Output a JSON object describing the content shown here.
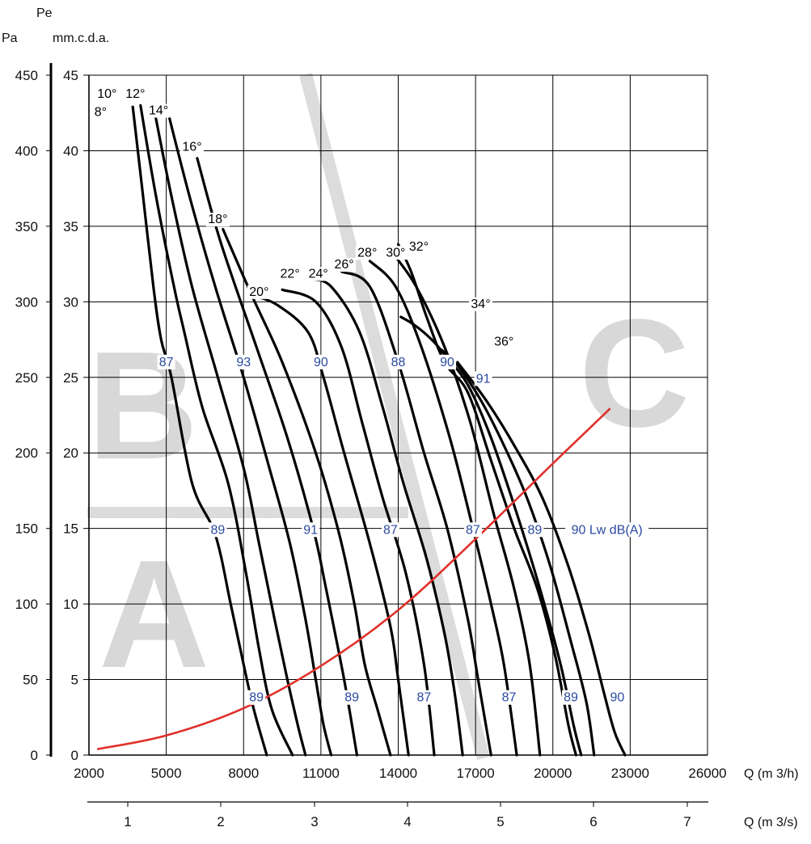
{
  "chart_data": {
    "type": "line",
    "left_axis": {
      "unit_top": "Pe",
      "unit_pa": "Pa",
      "unit_mm": "mm.c.d.a.",
      "pa_ticks": [
        "450",
        "400",
        "350",
        "300",
        "250",
        "200",
        "150",
        "100",
        "50",
        "0"
      ],
      "mm_ticks": [
        "45",
        "40",
        "35",
        "30",
        "25",
        "20",
        "15",
        "10",
        "5",
        "0"
      ],
      "ylim_mm": [
        0,
        45
      ]
    },
    "bottom_axis_h": {
      "label": "Q (m 3/h)",
      "ticks": [
        "2000",
        "5000",
        "8000",
        "11000",
        "14000",
        "17000",
        "20000",
        "23000",
        "26000"
      ],
      "xlim": [
        2000,
        26000
      ]
    },
    "bottom_axis_s": {
      "label": "Q (m 3/s)",
      "ticks": [
        "1",
        "2",
        "3",
        "4",
        "5",
        "6",
        "7"
      ]
    },
    "watermark_letters": [
      "B",
      "A",
      "C"
    ],
    "series": [
      {
        "name": "8°",
        "points": [
          [
            3700,
            42.9
          ],
          [
            4100,
            37
          ],
          [
            4500,
            31
          ],
          [
            4800,
            27.5
          ],
          [
            5200,
            25
          ],
          [
            6000,
            18
          ],
          [
            6900,
            14.6
          ],
          [
            7500,
            10
          ],
          [
            8000,
            6
          ],
          [
            8400,
            3
          ],
          [
            8900,
            0
          ]
        ]
      },
      {
        "name": "10°",
        "points": [
          [
            4000,
            43
          ],
          [
            4600,
            37
          ],
          [
            5300,
            31
          ],
          [
            5700,
            28
          ],
          [
            6400,
            23
          ],
          [
            7400,
            18
          ],
          [
            8100,
            12
          ],
          [
            8600,
            7
          ],
          [
            9100,
            3
          ],
          [
            9900,
            0
          ]
        ]
      },
      {
        "name": "12°",
        "points": [
          [
            4500,
            43
          ],
          [
            5200,
            37
          ],
          [
            6000,
            31
          ],
          [
            7000,
            25
          ],
          [
            8000,
            19
          ],
          [
            8600,
            14
          ],
          [
            9200,
            9
          ],
          [
            9700,
            5
          ],
          [
            10100,
            2
          ],
          [
            10400,
            0
          ]
        ]
      },
      {
        "name": "14°",
        "points": [
          [
            5000,
            43
          ],
          [
            5900,
            37
          ],
          [
            6900,
            31
          ],
          [
            8000,
            25
          ],
          [
            9000,
            19
          ],
          [
            9800,
            14
          ],
          [
            10400,
            9
          ],
          [
            10800,
            5
          ],
          [
            11100,
            2
          ],
          [
            11400,
            0
          ]
        ]
      },
      {
        "name": "16°",
        "points": [
          [
            6200,
            39.5
          ],
          [
            7100,
            34
          ],
          [
            8500,
            27
          ],
          [
            9700,
            21
          ],
          [
            10700,
            15
          ],
          [
            11200,
            11
          ],
          [
            11900,
            5
          ],
          [
            12400,
            0
          ]
        ]
      },
      {
        "name": "18°",
        "points": [
          [
            7200,
            34.8
          ],
          [
            8300,
            30.5
          ],
          [
            9500,
            26
          ],
          [
            10800,
            20
          ],
          [
            11700,
            14.7
          ],
          [
            12300,
            10
          ],
          [
            12700,
            6
          ],
          [
            13200,
            3
          ],
          [
            13700,
            0
          ]
        ]
      },
      {
        "name": "20°",
        "points": [
          [
            8400,
            30.4
          ],
          [
            9300,
            29.8
          ],
          [
            10500,
            28
          ],
          [
            11100,
            25
          ],
          [
            11900,
            20
          ],
          [
            12900,
            14
          ],
          [
            13700,
            8.5
          ],
          [
            14000,
            5
          ],
          [
            14400,
            0
          ]
        ]
      },
      {
        "name": "22°",
        "points": [
          [
            9500,
            30.8
          ],
          [
            10800,
            30
          ],
          [
            11800,
            27
          ],
          [
            12600,
            22
          ],
          [
            13400,
            17
          ],
          [
            14300,
            12
          ],
          [
            15000,
            6
          ],
          [
            15400,
            0
          ]
        ]
      },
      {
        "name": "24°",
        "points": [
          [
            10600,
            31.5
          ],
          [
            11400,
            31
          ],
          [
            12500,
            28
          ],
          [
            13400,
            23
          ],
          [
            14200,
            18
          ],
          [
            15100,
            13
          ],
          [
            15800,
            8
          ],
          [
            16200,
            4
          ],
          [
            16500,
            0
          ]
        ]
      },
      {
        "name": "26°",
        "points": [
          [
            11800,
            32
          ],
          [
            12900,
            31
          ],
          [
            14000,
            26
          ],
          [
            15000,
            20
          ],
          [
            15900,
            15
          ],
          [
            16700,
            9
          ],
          [
            17100,
            5
          ],
          [
            17600,
            0
          ]
        ]
      },
      {
        "name": "28°",
        "points": [
          [
            12900,
            32.7
          ],
          [
            13900,
            31
          ],
          [
            14900,
            27
          ],
          [
            16000,
            21
          ],
          [
            16900,
            15
          ],
          [
            17600,
            10
          ],
          [
            18100,
            6
          ],
          [
            18600,
            0
          ]
        ]
      },
      {
        "name": "30°",
        "points": [
          [
            13800,
            33.2
          ],
          [
            14700,
            31
          ],
          [
            15800,
            27
          ],
          [
            16800,
            22
          ],
          [
            17700,
            16
          ],
          [
            18500,
            11
          ],
          [
            19100,
            6
          ],
          [
            19500,
            0
          ]
        ]
      },
      {
        "name": "32°",
        "points": [
          [
            14000,
            33.8
          ],
          [
            14500,
            32
          ],
          [
            15100,
            29
          ],
          [
            15800,
            26
          ],
          [
            16700,
            24
          ],
          [
            17600,
            19.5
          ],
          [
            18500,
            15
          ],
          [
            19400,
            11
          ],
          [
            20100,
            6.5
          ],
          [
            20600,
            2
          ],
          [
            20900,
            0
          ]
        ]
      },
      {
        "name": "34°",
        "points": [
          [
            14100,
            29
          ],
          [
            14600,
            28.5
          ],
          [
            15300,
            27.5
          ],
          [
            15800,
            26.5
          ],
          [
            16700,
            24.5
          ],
          [
            17600,
            21
          ],
          [
            18600,
            16
          ],
          [
            19500,
            11
          ],
          [
            20300,
            6
          ],
          [
            20800,
            2
          ],
          [
            21100,
            0
          ]
        ]
      },
      {
        "name": "36°",
        "points": [
          [
            15700,
            26.8
          ],
          [
            16300,
            25.8
          ],
          [
            17200,
            23.5
          ],
          [
            18100,
            20.5
          ],
          [
            19000,
            17
          ],
          [
            19900,
            12.5
          ],
          [
            20700,
            7.5
          ],
          [
            21300,
            3.5
          ],
          [
            21600,
            0
          ]
        ]
      },
      {
        "name": "edge",
        "points": [
          [
            16300,
            26
          ],
          [
            17400,
            23.5
          ],
          [
            18500,
            20.5
          ],
          [
            19600,
            17
          ],
          [
            20600,
            12.5
          ],
          [
            21400,
            8
          ],
          [
            22000,
            4
          ],
          [
            22400,
            1.5
          ],
          [
            22800,
            0
          ]
        ]
      }
    ],
    "system_curve": [
      [
        2350,
        0.4
      ],
      [
        5000,
        1.3
      ],
      [
        8000,
        3.1
      ],
      [
        11000,
        5.9
      ],
      [
        14000,
        9.6
      ],
      [
        17000,
        14.3
      ],
      [
        20000,
        19.3
      ],
      [
        22200,
        22.9
      ]
    ],
    "angle_labels": [
      "8°",
      "10°",
      "12°",
      "14°",
      "16°",
      "18°",
      "20°",
      "22°",
      "24°",
      "26°",
      "28°",
      "30°",
      "32°",
      "34°",
      "36°"
    ],
    "noise_labels": [
      {
        "text": "87",
        "x": 5000,
        "y": 25.8
      },
      {
        "text": "93",
        "x": 8000,
        "y": 25.8
      },
      {
        "text": "90",
        "x": 11000,
        "y": 25.8
      },
      {
        "text": "88",
        "x": 14000,
        "y": 25.8
      },
      {
        "text": "90",
        "x": 15900,
        "y": 25.8
      },
      {
        "text": "91",
        "x": 17300,
        "y": 24.7
      },
      {
        "text": "89",
        "x": 7000,
        "y": 14.7
      },
      {
        "text": "91",
        "x": 10600,
        "y": 14.7
      },
      {
        "text": "87",
        "x": 13700,
        "y": 14.7
      },
      {
        "text": "87",
        "x": 16900,
        "y": 14.7
      },
      {
        "text": "89",
        "x": 19300,
        "y": 14.7
      },
      {
        "text": "90 Lw dB(A)",
        "x": 22100,
        "y": 14.7
      },
      {
        "text": "89",
        "x": 8500,
        "y": 3.6
      },
      {
        "text": "89",
        "x": 12200,
        "y": 3.6
      },
      {
        "text": "87",
        "x": 15000,
        "y": 3.6
      },
      {
        "text": "87",
        "x": 18300,
        "y": 3.6
      },
      {
        "text": "89",
        "x": 20700,
        "y": 3.6
      },
      {
        "text": "90",
        "x": 22500,
        "y": 3.6
      }
    ]
  }
}
